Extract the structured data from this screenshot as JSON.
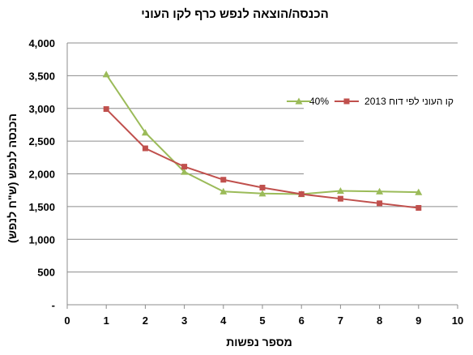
{
  "chart_data": {
    "type": "line",
    "title": "הכנסה/הוצאה לנפש כרף לקו העוני",
    "xlabel": "מספר נפשות",
    "ylabel": "הכנסה לנפש (ש\"ח לנפש)",
    "xlim": [
      0,
      10
    ],
    "ylim": [
      0,
      4000
    ],
    "x_ticks": [
      "0",
      "1",
      "2",
      "3",
      "4",
      "5",
      "6",
      "7",
      "8",
      "9",
      "10"
    ],
    "y_ticks": [
      "-",
      "500",
      "1,000",
      "1,500",
      "2,000",
      "2,500",
      "3,000",
      "3,500",
      "4,000"
    ],
    "y_tick_values": [
      0,
      500,
      1000,
      1500,
      2000,
      2500,
      3000,
      3500,
      4000
    ],
    "grid": "horizontal",
    "legend_position": "right",
    "series": [
      {
        "name": "קו העוני לפי דוח 2013",
        "color": "#c0504d",
        "marker": "square",
        "x": [
          1,
          2,
          3,
          4,
          5,
          6,
          7,
          8,
          9
        ],
        "values": [
          2990,
          2390,
          2110,
          1910,
          1790,
          1690,
          1620,
          1550,
          1480
        ]
      },
      {
        "name": "40%",
        "color": "#9bbb59",
        "marker": "triangle",
        "x": [
          1,
          2,
          3,
          4,
          5,
          6,
          7,
          8,
          9
        ],
        "values": [
          3520,
          2630,
          2030,
          1730,
          1700,
          1690,
          1740,
          1730,
          1720
        ]
      }
    ]
  }
}
